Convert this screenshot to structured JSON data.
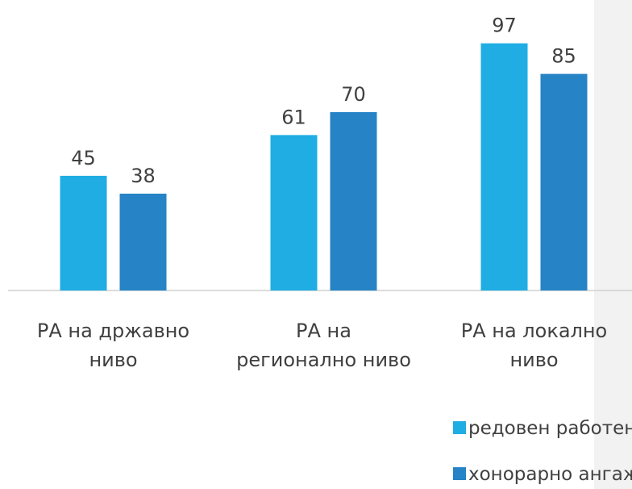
{
  "chart_data": {
    "type": "bar",
    "categories": [
      "РА на државно\nниво",
      "РА на\nрегионално ниво",
      "РА на локално\nниво"
    ],
    "series": [
      {
        "name": "редовен работен однос",
        "color": "#1fade4",
        "values": [
          45,
          61,
          97
        ]
      },
      {
        "name": "хонорарно ангажирани",
        "color": "#2683c6",
        "values": [
          38,
          70,
          85
        ]
      }
    ],
    "ylim": [
      0,
      114
    ],
    "grid": false
  }
}
